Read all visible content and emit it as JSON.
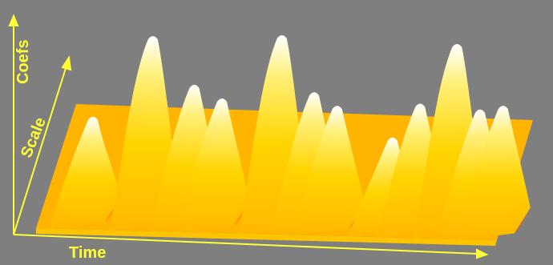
{
  "chart_data": {
    "type": "surface",
    "title": "",
    "xlabel": "Time",
    "ylabel": "Scale",
    "zlabel": "Coefs",
    "colormap": [
      "#ffb800",
      "#ffd400",
      "#fff07a",
      "#ffffff",
      "#ff2a00"
    ],
    "axis_color": "#ffff33",
    "background": "#7f7f7f",
    "grid": false,
    "ridges": [
      {
        "time": 0.08,
        "height": 0.52
      },
      {
        "time": 0.21,
        "height": 0.9
      },
      {
        "time": 0.3,
        "height": 0.68
      },
      {
        "time": 0.36,
        "height": 0.62
      },
      {
        "time": 0.49,
        "height": 0.92
      },
      {
        "time": 0.56,
        "height": 0.66
      },
      {
        "time": 0.61,
        "height": 0.6
      },
      {
        "time": 0.73,
        "height": 0.46
      },
      {
        "time": 0.79,
        "height": 0.62
      },
      {
        "time": 0.87,
        "height": 0.9
      },
      {
        "time": 0.92,
        "height": 0.6
      },
      {
        "time": 0.97,
        "height": 0.62
      }
    ]
  },
  "axes": {
    "time_label": "Time",
    "scale_label": "Scale",
    "coefs_label": "Coefs"
  }
}
